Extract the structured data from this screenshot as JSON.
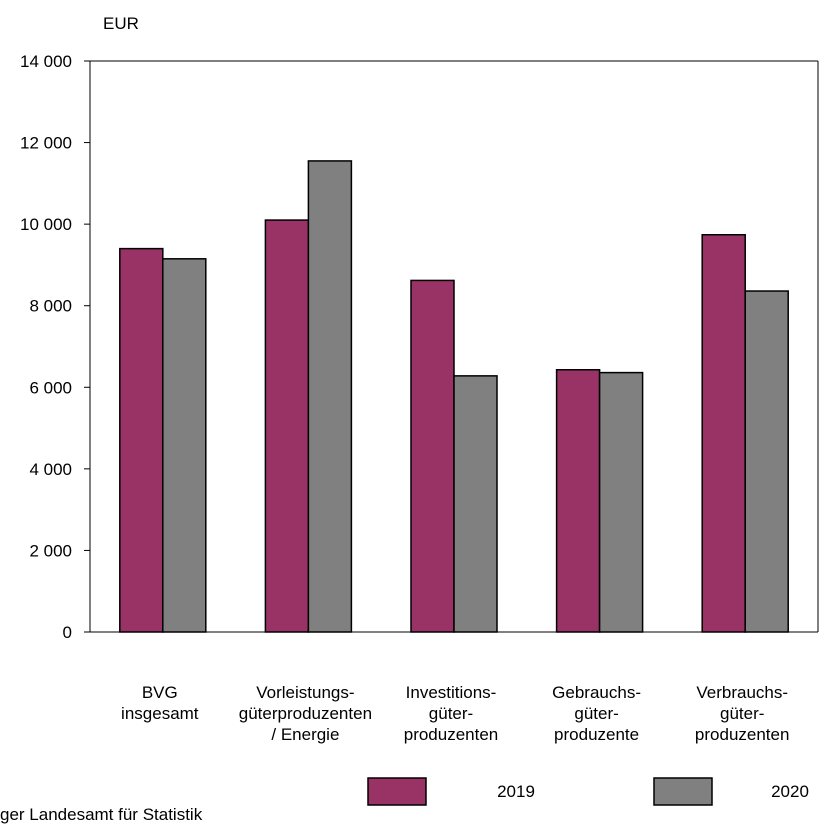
{
  "chart_data": {
    "type": "bar",
    "ylabel": "EUR",
    "ylim": [
      0,
      14000
    ],
    "yticks": [
      0,
      2000,
      4000,
      6000,
      8000,
      10000,
      12000,
      14000
    ],
    "ytick_labels": [
      "0",
      "2 000",
      "4 000",
      "6 000",
      "8 000",
      "10 000",
      "12 000",
      "14 000"
    ],
    "categories": [
      [
        "BVG",
        "insgesamt"
      ],
      [
        "Vorleistungs-",
        "güterproduzenten",
        "/ Energie"
      ],
      [
        "Investitions-",
        "güter-",
        "produzenten"
      ],
      [
        "Gebrauchs-",
        "güter-",
        "produzente"
      ],
      [
        "Verbrauchs-",
        "güter-",
        "produzenten"
      ]
    ],
    "series": [
      {
        "name": "2019",
        "color": "#993366",
        "values": [
          9400,
          10100,
          8620,
          6430,
          9740
        ]
      },
      {
        "name": "2020",
        "color": "#808080",
        "values": [
          9150,
          11550,
          6280,
          6360,
          8360
        ]
      }
    ],
    "grid": false,
    "legend_position": "bottom-right"
  },
  "footer": {
    "source": "ger Landesamt für Statistik"
  }
}
